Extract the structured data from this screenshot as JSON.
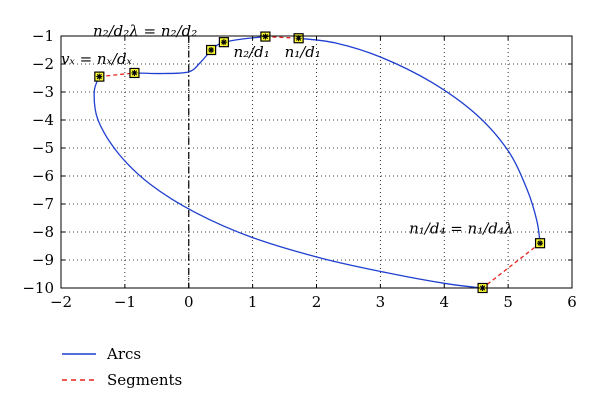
{
  "chart_data": {
    "type": "line",
    "xlim": [
      -2,
      6
    ],
    "ylim": [
      -10,
      -1
    ],
    "x_ticks": [
      -2,
      -1,
      0,
      1,
      2,
      3,
      4,
      5,
      6
    ],
    "y_ticks": [
      -1,
      -2,
      -3,
      -4,
      -5,
      -6,
      -7,
      -8,
      -9,
      -10
    ],
    "grid": "dotted",
    "vertical_reference_line": {
      "x": 0,
      "style": "dash-dot"
    },
    "series": [
      {
        "name": "Arcs",
        "color": "#1f3fd0",
        "style": "solid",
        "arcs": [
          [
            [
              -1.4,
              -2.45
            ],
            [
              -1.48,
              -3.0
            ],
            [
              -1.42,
              -4.0
            ],
            [
              -1.1,
              -5.2
            ],
            [
              -0.6,
              -6.3
            ],
            [
              0.1,
              -7.3
            ],
            [
              1.0,
              -8.2
            ],
            [
              2.1,
              -8.95
            ],
            [
              3.2,
              -9.5
            ],
            [
              4.05,
              -9.85
            ],
            [
              4.6,
              -10.0
            ]
          ],
          [
            [
              -0.85,
              -2.32
            ],
            [
              -0.4,
              -2.34
            ],
            [
              0.0,
              -2.28
            ],
            [
              0.18,
              -1.95
            ],
            [
              0.35,
              -1.5
            ]
          ],
          [
            [
              0.35,
              -1.5
            ],
            [
              0.45,
              -1.32
            ],
            [
              0.55,
              -1.22
            ]
          ],
          [
            [
              0.55,
              -1.22
            ],
            [
              0.8,
              -1.12
            ],
            [
              1.2,
              -1.02
            ]
          ],
          [
            [
              1.72,
              -1.08
            ],
            [
              2.3,
              -1.25
            ],
            [
              3.0,
              -1.75
            ],
            [
              3.8,
              -2.65
            ],
            [
              4.5,
              -3.8
            ],
            [
              5.0,
              -5.1
            ],
            [
              5.3,
              -6.5
            ],
            [
              5.45,
              -7.6
            ],
            [
              5.5,
              -8.4
            ]
          ]
        ]
      },
      {
        "name": "Segments",
        "color": "#e8221b",
        "style": "dashed",
        "segments": [
          [
            [
              -1.4,
              -2.45
            ],
            [
              -0.85,
              -2.32
            ]
          ],
          [
            [
              1.2,
              -1.02
            ],
            [
              1.72,
              -1.08
            ]
          ],
          [
            [
              5.5,
              -8.4
            ],
            [
              4.6,
              -10.0
            ]
          ]
        ]
      }
    ],
    "markers": [
      {
        "x": -1.4,
        "y": -2.45
      },
      {
        "x": -0.85,
        "y": -2.32
      },
      {
        "x": 0.35,
        "y": -1.5
      },
      {
        "x": 0.55,
        "y": -1.22
      },
      {
        "x": 1.2,
        "y": -1.02
      },
      {
        "x": 1.72,
        "y": -1.08
      },
      {
        "x": 5.5,
        "y": -8.4
      },
      {
        "x": 4.6,
        "y": -10.0
      }
    ],
    "annotations": [
      {
        "text": "n₂/d₂λ = n₂/d₂",
        "x": -1.5,
        "y": -1.0
      },
      {
        "text": "vₓ = nₓ/dₓ",
        "x": -2.0,
        "y": -2.0
      },
      {
        "text": "n₂/d₁",
        "x": 0.7,
        "y": -1.75
      },
      {
        "text": "n₁/d₁",
        "x": 1.5,
        "y": -1.75
      },
      {
        "text": "n₁/d₄ = n₁/d₄λ",
        "x": 3.45,
        "y": -8.05
      }
    ],
    "legend": {
      "placement": "bottom-left",
      "entries": [
        "Arcs",
        "Segments"
      ]
    }
  }
}
